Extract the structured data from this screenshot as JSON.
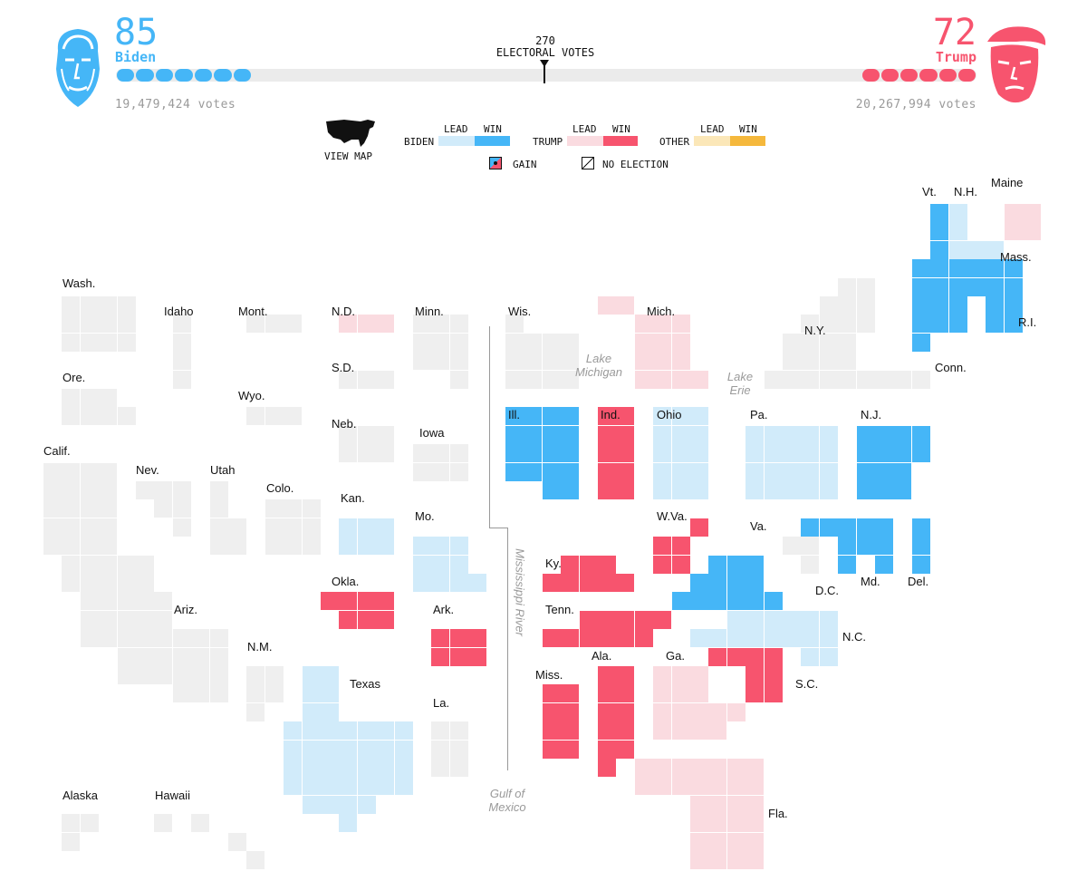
{
  "header": {
    "biden": {
      "electoral": "85",
      "name": "Biden",
      "votes": "19,479,424 votes",
      "color": "#45b6f7"
    },
    "trump": {
      "electoral": "72",
      "name": "Trump",
      "votes": "20,267,994 votes",
      "color": "#f7546e"
    },
    "threshold_number": "270",
    "threshold_label": "ELECTORAL VOTES"
  },
  "legend": {
    "view_map": "VIEW MAP",
    "lead": "LEAD",
    "win": "WIN",
    "biden": "BIDEN",
    "trump": "TRUMP",
    "other": "OTHER",
    "gain": "GAIN",
    "no_election": "NO ELECTION"
  },
  "colors": {
    "biden_lead": "#d1ebfa",
    "biden_win": "#45b6f7",
    "trump_lead": "#fadbe0",
    "trump_win": "#f7546e",
    "other_lead": "#fbe7b8",
    "other_win": "#f5b83c",
    "no_result": "#efefef"
  },
  "states": [
    {
      "name": "Wash.",
      "status": "none"
    },
    {
      "name": "Idaho",
      "status": "none"
    },
    {
      "name": "Mont.",
      "status": "none"
    },
    {
      "name": "N.D.",
      "status": "trump_lead"
    },
    {
      "name": "Minn.",
      "status": "none"
    },
    {
      "name": "Wis.",
      "status": "none"
    },
    {
      "name": "Mich.",
      "status": "trump_lead"
    },
    {
      "name": "Vt.",
      "status": "biden_win"
    },
    {
      "name": "N.H.",
      "status": "biden_lead"
    },
    {
      "name": "Maine",
      "status": "trump_lead"
    },
    {
      "name": "Mass.",
      "status": "biden_win"
    },
    {
      "name": "N.Y.",
      "status": "none"
    },
    {
      "name": "R.I.",
      "status": "biden_win"
    },
    {
      "name": "Conn.",
      "status": "biden_win"
    },
    {
      "name": "Ore.",
      "status": "none"
    },
    {
      "name": "Wyo.",
      "status": "none"
    },
    {
      "name": "S.D.",
      "status": "none"
    },
    {
      "name": "Neb.",
      "status": "none"
    },
    {
      "name": "Iowa",
      "status": "none"
    },
    {
      "name": "Ill.",
      "status": "biden_win"
    },
    {
      "name": "Ind.",
      "status": "trump_win"
    },
    {
      "name": "Ohio",
      "status": "biden_lead"
    },
    {
      "name": "Pa.",
      "status": "biden_lead"
    },
    {
      "name": "N.J.",
      "status": "biden_win"
    },
    {
      "name": "Calif.",
      "status": "none"
    },
    {
      "name": "Nev.",
      "status": "none"
    },
    {
      "name": "Utah",
      "status": "none"
    },
    {
      "name": "Colo.",
      "status": "none"
    },
    {
      "name": "Kan.",
      "status": "biden_lead"
    },
    {
      "name": "Mo.",
      "status": "biden_lead"
    },
    {
      "name": "W.Va.",
      "status": "trump_win"
    },
    {
      "name": "Va.",
      "status": "biden_win"
    },
    {
      "name": "Md.",
      "status": "biden_win"
    },
    {
      "name": "Del.",
      "status": "biden_win"
    },
    {
      "name": "D.C.",
      "status": "none"
    },
    {
      "name": "Ky.",
      "status": "trump_win"
    },
    {
      "name": "Okla.",
      "status": "trump_win"
    },
    {
      "name": "Tenn.",
      "status": "trump_win"
    },
    {
      "name": "N.C.",
      "status": "biden_lead"
    },
    {
      "name": "Ariz.",
      "status": "none"
    },
    {
      "name": "N.M.",
      "status": "none"
    },
    {
      "name": "Ark.",
      "status": "trump_win"
    },
    {
      "name": "Ala.",
      "status": "trump_win"
    },
    {
      "name": "Ga.",
      "status": "trump_lead"
    },
    {
      "name": "S.C.",
      "status": "trump_win"
    },
    {
      "name": "Texas",
      "status": "biden_lead"
    },
    {
      "name": "Miss.",
      "status": "trump_win"
    },
    {
      "name": "La.",
      "status": "none"
    },
    {
      "name": "Fla.",
      "status": "trump_lead"
    },
    {
      "name": "Alaska",
      "status": "none"
    },
    {
      "name": "Hawaii",
      "status": "none"
    }
  ],
  "geography": {
    "lake_michigan": [
      "Lake",
      "Michigan"
    ],
    "lake_erie": [
      "Lake",
      "Erie"
    ],
    "mississippi": "Mississippi River",
    "gulf": [
      "Gulf of",
      "Mexico"
    ]
  }
}
